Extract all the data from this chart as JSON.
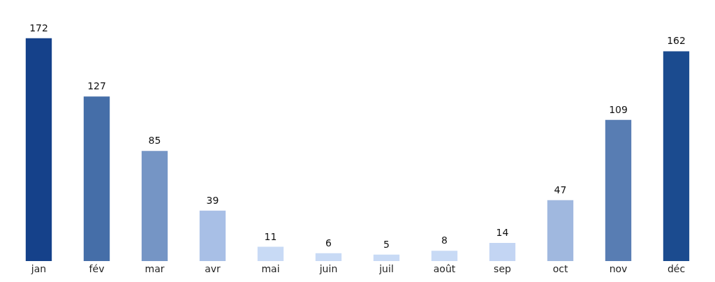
{
  "chart_data": {
    "type": "bar",
    "categories": [
      "jan",
      "fév",
      "mar",
      "avr",
      "mai",
      "juin",
      "juil",
      "août",
      "sep",
      "oct",
      "nov",
      "déc"
    ],
    "values": [
      172,
      127,
      85,
      39,
      11,
      6,
      5,
      8,
      14,
      47,
      109,
      162
    ],
    "colors": [
      "#15418a",
      "#456ea8",
      "#7595c5",
      "#a8bfe6",
      "#c8daf5",
      "#c8daf5",
      "#c8daf5",
      "#c8daf5",
      "#c3d5f3",
      "#a0b8df",
      "#587db3",
      "#1b4b8f"
    ],
    "data_labels": true
  }
}
